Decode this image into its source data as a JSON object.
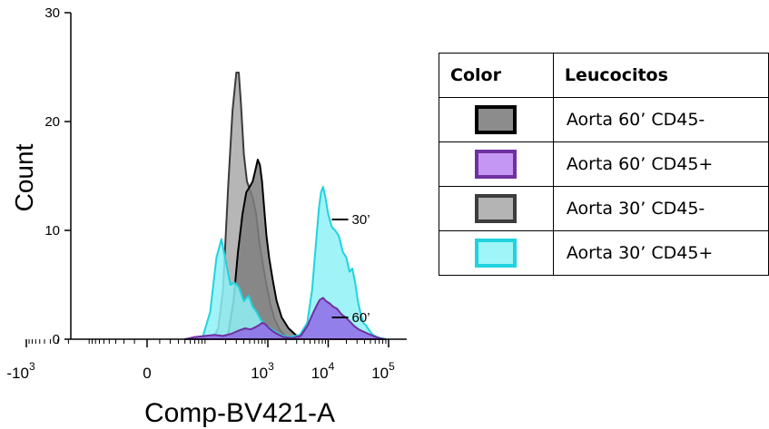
{
  "chart_data": {
    "type": "area",
    "xlabel": "Comp-BV421-A",
    "ylabel": "Count",
    "ylim": [
      0,
      30
    ],
    "yticks": [
      0,
      10,
      20,
      30
    ],
    "xticks": [
      {
        "base": "-10",
        "exp": "3",
        "value": -1000
      },
      {
        "base": "0",
        "exp": "",
        "value": 0
      },
      {
        "base": "10",
        "exp": "3",
        "value": 1000
      },
      {
        "base": "10",
        "exp": "4",
        "value": 10000
      },
      {
        "base": "10",
        "exp": "5",
        "value": 100000
      }
    ],
    "series": [
      {
        "name": "Aorta 30’ CD45-",
        "fill": "#a9a9a9",
        "stroke": "#3a3a3a",
        "x": [
          120,
          150,
          180,
          220,
          260,
          300,
          330,
          360,
          400,
          450,
          500,
          560,
          640,
          720,
          820,
          950,
          1100,
          1300,
          1600,
          2000,
          2600
        ],
        "y": [
          0,
          1.0,
          4.5,
          14,
          21,
          24.5,
          24.5,
          21.5,
          17,
          14.5,
          13.8,
          13,
          11.5,
          9,
          7,
          5,
          3.2,
          1.8,
          0.8,
          0.2,
          0
        ]
      },
      {
        "name": "Aorta 60’ CD45-",
        "fill": "#7f7f7f",
        "stroke": "#000000",
        "x": [
          170,
          220,
          270,
          320,
          380,
          440,
          500,
          560,
          620,
          680,
          740,
          800,
          870,
          950,
          1050,
          1200,
          1400,
          1700,
          2200,
          2900,
          3700
        ],
        "y": [
          0,
          0.5,
          3.5,
          8,
          11.5,
          13.5,
          14,
          14.5,
          15.5,
          16.5,
          16,
          14.5,
          12,
          9.5,
          7.5,
          5.5,
          3.5,
          2,
          1,
          0.4,
          0
        ]
      },
      {
        "name": "Aorta 30’ CD45+",
        "fill": "#8ff1f6",
        "stroke": "#1fd3df",
        "x": [
          80,
          110,
          140,
          170,
          200,
          240,
          280,
          330,
          400,
          480,
          560,
          650,
          760,
          900,
          1100,
          1400,
          1800,
          2400,
          3400,
          4500,
          5400,
          6200,
          7000,
          7600,
          8200,
          9000,
          10000,
          11500,
          13000,
          15000,
          17500,
          20000,
          22500,
          25000,
          28000,
          31000,
          34000,
          38000,
          42000,
          48000,
          55000,
          65000,
          75000,
          90000
        ],
        "y": [
          0,
          2.5,
          7.5,
          9.2,
          7.2,
          5,
          5.2,
          4.8,
          3.5,
          4,
          3,
          2.5,
          1.8,
          1.3,
          1.0,
          0.6,
          0.3,
          0.2,
          0.4,
          1.5,
          4.5,
          8.5,
          12,
          13.5,
          14,
          13,
          11.5,
          10.3,
          10,
          9.5,
          8,
          7.5,
          6.2,
          6.5,
          5.2,
          3.5,
          2.5,
          1.5,
          1.3,
          0.8,
          0.4,
          0.2,
          0.1,
          0
        ]
      },
      {
        "name": "Aorta 60’ CD45+",
        "fill": "#8f6ae6",
        "stroke": "#7030a0",
        "x": [
          40,
          60,
          90,
          130,
          180,
          250,
          330,
          420,
          520,
          620,
          720,
          800,
          900,
          1050,
          1300,
          1800,
          2500,
          3500,
          4600,
          5500,
          6300,
          7200,
          8200,
          9200,
          10500,
          12000,
          14000,
          16500,
          19500,
          23000,
          27000,
          32000,
          38000,
          46000,
          56000,
          70000,
          85000
        ],
        "y": [
          0,
          0.2,
          0.3,
          0.4,
          0.3,
          0.5,
          0.8,
          1.0,
          0.9,
          1.1,
          1.3,
          1.5,
          1.4,
          1.0,
          0.6,
          0.2,
          0.1,
          0.3,
          1.3,
          2.3,
          3,
          3.6,
          3.8,
          3.5,
          3.3,
          3.0,
          2.8,
          2.3,
          2.0,
          1.6,
          1.2,
          0.9,
          0.7,
          0.5,
          0.3,
          0.1,
          0
        ]
      }
    ],
    "annotations": [
      {
        "text": "30’",
        "x": 20000,
        "y": 11
      },
      {
        "text": "60’",
        "x": 20000,
        "y": 2
      }
    ]
  },
  "legend_table": {
    "header_color": "Color",
    "header_label": "Leucocitos",
    "rows": [
      {
        "label": "Aorta 60’ CD45-",
        "fill": "#8c8c8c",
        "border": "#000000"
      },
      {
        "label": "Aorta 60’ CD45+",
        "fill": "#c597f4",
        "border": "#7030a0"
      },
      {
        "label": "Aorta 30’ CD45-",
        "fill": "#b4b4b4",
        "border": "#3c3c3c"
      },
      {
        "label": "Aorta 30’ CD45+",
        "fill": "#9ff5f8",
        "border": "#1fd3df"
      }
    ]
  }
}
